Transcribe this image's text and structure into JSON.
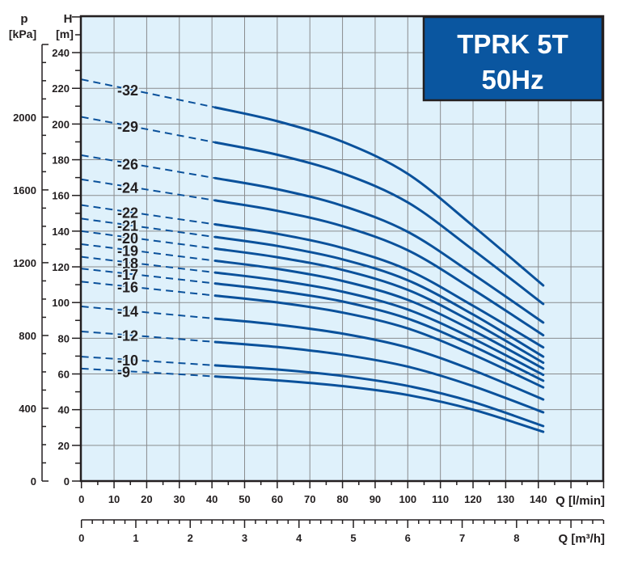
{
  "chart_data": {
    "type": "line",
    "title": [
      "TPRK 5T",
      "50Hz"
    ],
    "xlabel": "Q [l/min]",
    "x2label": "Q [m³/h]",
    "ylabel": [
      "H",
      "[m]"
    ],
    "y2label": [
      "p",
      "[kPa]"
    ],
    "xlim": [
      0,
      160
    ],
    "x2lim": [
      0,
      9.6
    ],
    "ylim": [
      0,
      260
    ],
    "grid": true,
    "x_ticks": [
      0,
      10,
      20,
      30,
      40,
      50,
      60,
      70,
      80,
      90,
      100,
      110,
      120,
      130,
      140
    ],
    "x2_ticks": [
      0,
      1,
      2,
      3,
      4,
      5,
      6,
      7,
      8
    ],
    "y_ticks": [
      0,
      20,
      40,
      60,
      80,
      100,
      120,
      140,
      160,
      180,
      200,
      220,
      240
    ],
    "y2_ticks": [
      0,
      400,
      800,
      1200,
      1600,
      2000
    ],
    "dashed_until_q": 41,
    "x": [
      0,
      20,
      41,
      60,
      80,
      100,
      120,
      141.5
    ],
    "series": [
      {
        "name": "-32",
        "values": [
          225,
          217.4,
          209.3,
          201.6,
          190.1,
          172.1,
          142.9,
          109.6
        ]
      },
      {
        "name": "-29",
        "values": [
          204,
          197.1,
          189.7,
          182.8,
          172.4,
          156.1,
          129.5,
          99.2
        ]
      },
      {
        "name": "-26",
        "values": [
          182.5,
          176.3,
          169.7,
          163.5,
          154.2,
          139.6,
          115.9,
          88.8
        ]
      },
      {
        "name": "-24",
        "values": [
          169,
          163.3,
          157.2,
          151.4,
          142.8,
          129.3,
          107.3,
          81.7
        ]
      },
      {
        "name": "-22",
        "values": [
          154.6,
          149.3,
          143.8,
          138.5,
          130.6,
          118.3,
          98.2,
          74.9
        ]
      },
      {
        "name": "-21",
        "values": [
          147,
          142,
          136.7,
          131.7,
          124.2,
          112.5,
          93.3,
          69.7
        ]
      },
      {
        "name": "-20",
        "values": [
          140,
          135.2,
          130.2,
          125.4,
          118.3,
          107.1,
          88.9,
          66.3
        ]
      },
      {
        "name": "-19",
        "values": [
          132.7,
          128.2,
          123.4,
          118.9,
          112.1,
          101.5,
          84.3,
          63
        ]
      },
      {
        "name": "-18",
        "values": [
          125.6,
          121.3,
          116.8,
          112.5,
          106.1,
          96.1,
          79.8,
          59.5
        ]
      },
      {
        "name": "-17",
        "values": [
          119,
          115,
          110.7,
          106.6,
          100.6,
          91,
          75.6,
          56.2
        ]
      },
      {
        "name": "-16",
        "values": [
          111.7,
          107.9,
          103.9,
          100.1,
          94.4,
          85.5,
          70.9,
          52.5
        ]
      },
      {
        "name": "-14",
        "values": [
          97.8,
          94.5,
          91,
          87.6,
          82.6,
          74.8,
          62.1,
          45.7
        ]
      },
      {
        "name": "-12",
        "values": [
          83.8,
          81,
          77.9,
          75.1,
          70.8,
          64.1,
          53.2,
          38.5
        ]
      },
      {
        "name": "-10",
        "values": [
          69.7,
          67.3,
          64.8,
          62.5,
          58.9,
          53.3,
          44.3,
          30.8
        ]
      },
      {
        "name": "-9",
        "values": [
          63,
          60.9,
          58.6,
          56.4,
          53.2,
          48.2,
          40,
          27.6
        ]
      }
    ],
    "colors": {
      "curve": "#0a519b",
      "plot_bg": "#dff1fb",
      "grid": "#8a8c8e",
      "title_bg": "#0a56a0",
      "axis": "#231f20"
    }
  }
}
